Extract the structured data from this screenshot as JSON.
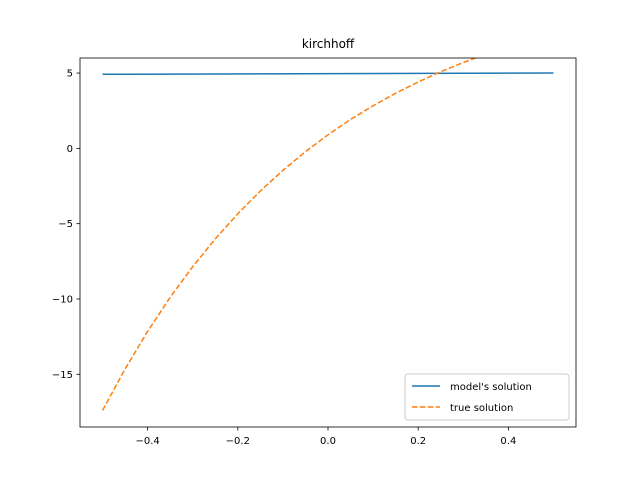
{
  "chart_data": {
    "type": "line",
    "title": "kirchhoff",
    "xlabel": "",
    "ylabel": "",
    "xlim": [
      -0.55,
      0.55
    ],
    "ylim": [
      -18.5,
      6.0
    ],
    "x_ticks": [
      -0.4,
      -0.2,
      0.0,
      0.2,
      0.4
    ],
    "x_tick_labels": [
      "−0.4",
      "−0.2",
      "0.0",
      "0.2",
      "0.4"
    ],
    "y_ticks": [
      5,
      0,
      -5,
      -10,
      -15
    ],
    "y_tick_labels": [
      "5",
      "0",
      "−5",
      "−10",
      "−15"
    ],
    "grid": false,
    "legend_position": "lower-right",
    "series": [
      {
        "name": "model's solution",
        "color": "#1f77b4",
        "style": "solid",
        "x": [
          -0.5,
          0.5
        ],
        "y": [
          4.92,
          5.0
        ]
      },
      {
        "name": "true solution",
        "color": "#ff7f0e",
        "style": "dashed",
        "x": [
          -0.5,
          -0.45,
          -0.4,
          -0.35,
          -0.3,
          -0.25,
          -0.2,
          -0.15,
          -0.1,
          -0.05,
          0.0,
          0.05,
          0.1,
          0.15,
          0.2,
          0.25,
          0.3,
          0.35,
          0.4,
          0.45,
          0.5
        ],
        "y": [
          -17.4,
          -14.65,
          -12.15,
          -9.89,
          -7.85,
          -6.01,
          -4.34,
          -2.83,
          -1.46,
          -0.22,
          0.9,
          1.92,
          2.83,
          3.66,
          4.41,
          5.09,
          5.7,
          6.26,
          6.76,
          7.22,
          7.63
        ]
      }
    ]
  }
}
